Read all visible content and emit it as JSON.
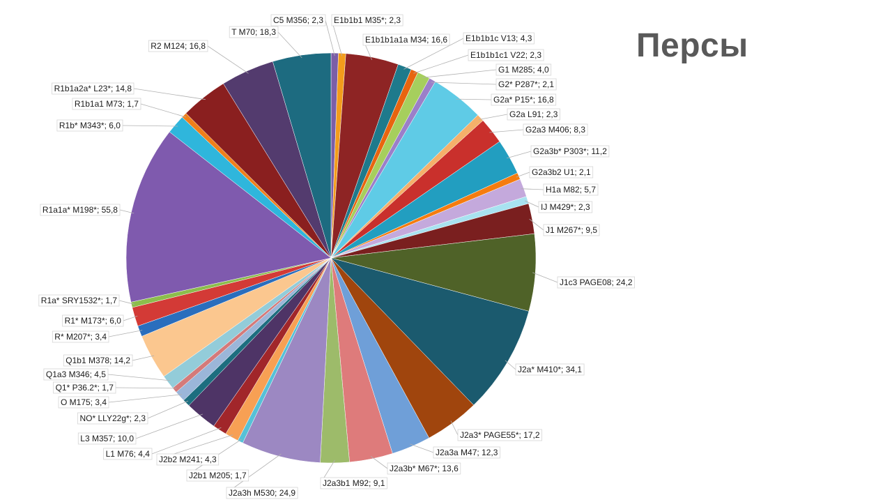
{
  "chart_data": {
    "type": "pie",
    "title": "Персы",
    "slices": [
      {
        "name": "C5 M356",
        "value": 2.3,
        "label": "C5 M356; 2,3",
        "color": "#7b5ea7"
      },
      {
        "name": "E1b1b1 M35*",
        "value": 2.3,
        "label": "E1b1b1 M35*; 2,3",
        "color": "#f39c1b"
      },
      {
        "name": "E1b1b1a1a M34",
        "value": 16.6,
        "label": "E1b1b1a1a M34; 16,6",
        "color": "#8e2424"
      },
      {
        "name": "E1b1b1c V13",
        "value": 4.3,
        "label": "E1b1b1c V13; 4,3",
        "color": "#1e7a8c"
      },
      {
        "name": "E1b1b1c1 V22",
        "value": 2.3,
        "label": "E1b1b1c1 V22; 2,3",
        "color": "#e8650f"
      },
      {
        "name": "G1 M285",
        "value": 4.0,
        "label": "G1 M285; 4,0",
        "color": "#a6cf5d"
      },
      {
        "name": "G2* P287*",
        "value": 2.1,
        "label": "G2* P287*; 2,1",
        "color": "#9b7fc9"
      },
      {
        "name": "G2a* P15*",
        "value": 16.8,
        "label": "G2a* P15*; 16,8",
        "color": "#5fcbe6"
      },
      {
        "name": "G2a L91",
        "value": 2.3,
        "label": "G2a L91; 2,3",
        "color": "#f5b06a"
      },
      {
        "name": "G2a3 M406",
        "value": 8.3,
        "label": "G2a3 M406; 8,3",
        "color": "#c9302c"
      },
      {
        "name": "G2a3b* P303*",
        "value": 11.2,
        "label": "G2a3b* P303*; 11,2",
        "color": "#229ec0"
      },
      {
        "name": "G2a3b2 U1",
        "value": 2.1,
        "label": "G2a3b2 U1; 2,1",
        "color": "#f57c0f"
      },
      {
        "name": "H1a M82",
        "value": 5.7,
        "label": "H1a M82; 5,7",
        "color": "#c4a9dc"
      },
      {
        "name": "IJ M429*",
        "value": 2.3,
        "label": "IJ M429*; 2,3",
        "color": "#a8e2f0"
      },
      {
        "name": "J1 M267*",
        "value": 9.5,
        "label": "J1 M267*; 9,5",
        "color": "#7a1f1f"
      },
      {
        "name": "J1c3 PAGE08",
        "value": 24.2,
        "label": "J1c3 PAGE08; 24,2",
        "color": "#4f6228"
      },
      {
        "name": "J2a* M410*",
        "value": 34.1,
        "label": "J2a* M410*; 34,1",
        "color": "#1b5a6e"
      },
      {
        "name": "J2a3* PAGE55*",
        "value": 17.2,
        "label": "J2a3* PAGE55*; 17,2",
        "color": "#a0450d"
      },
      {
        "name": "J2a3a M47",
        "value": 12.3,
        "label": "J2a3a M47; 12,3",
        "color": "#6f9fd8"
      },
      {
        "name": "J2a3b* M67*",
        "value": 13.6,
        "label": "J2a3b* M67*; 13,6",
        "color": "#de7b7b"
      },
      {
        "name": "J2a3b1 M92",
        "value": 9.1,
        "label": "J2a3b1 M92; 9,1",
        "color": "#9dbb6a"
      },
      {
        "name": "J2a3h M530",
        "value": 24.9,
        "label": "J2a3h M530; 24,9",
        "color": "#9c88c2"
      },
      {
        "name": "J2b1 M205",
        "value": 1.7,
        "label": "J2b1 M205; 1,7",
        "color": "#56c1d7"
      },
      {
        "name": "J2b2 M241",
        "value": 4.3,
        "label": "J2b2 M241; 4,3",
        "color": "#f7a054"
      },
      {
        "name": "L1 M76",
        "value": 4.4,
        "label": "L1 M76; 4,4",
        "color": "#a1262a"
      },
      {
        "name": "L3 M357",
        "value": 10.0,
        "label": "L3 M357; 10,0",
        "color": "#4e3466"
      },
      {
        "name": "NO* LLY22g*",
        "value": 2.3,
        "label": "NO* LLY22g*; 2,3",
        "color": "#1d6e7f"
      },
      {
        "name": "O M175",
        "value": 3.4,
        "label": "O M175; 3,4",
        "color": "#9bb6d9"
      },
      {
        "name": "Q1* P36.2*",
        "value": 1.7,
        "label": "Q1* P36.2*; 1,7",
        "color": "#d47a7a"
      },
      {
        "name": "Q1a3 M346",
        "value": 4.5,
        "label": "Q1a3 M346; 4,5",
        "color": "#93ccd9"
      },
      {
        "name": "Q1b1 M378",
        "value": 14.2,
        "label": "Q1b1 M378; 14,2",
        "color": "#fbc78f"
      },
      {
        "name": "R* M207*",
        "value": 3.4,
        "label": "R* M207*; 3,4",
        "color": "#2a6ebd"
      },
      {
        "name": "R1* M173*",
        "value": 6.0,
        "label": "R1* M173*; 6,0",
        "color": "#d33a36"
      },
      {
        "name": "R1a* SRY1532*",
        "value": 1.7,
        "label": "R1a* SRY1532*; 1,7",
        "color": "#8cbd4c"
      },
      {
        "name": "R1a1a* M198*",
        "value": 55.8,
        "label": "R1a1a* M198*; 55,8",
        "color": "#7f5aae"
      },
      {
        "name": "R1b* M343*",
        "value": 6.0,
        "label": "R1b* M343*; 6,0",
        "color": "#2fb6dc"
      },
      {
        "name": "R1b1a1 M73",
        "value": 1.7,
        "label": "R1b1a1 M73; 1,7",
        "color": "#f07f1a"
      },
      {
        "name": "R1b1a2a* L23*",
        "value": 14.8,
        "label": "R1b1a2a* L23*; 14,8",
        "color": "#8a1f1f"
      },
      {
        "name": "R2 M124",
        "value": 16.8,
        "label": "R2 M124; 16,8",
        "color": "#533b6e"
      },
      {
        "name": "T M70",
        "value": 18.3,
        "label": "T M70; 18,3",
        "color": "#1d6b80"
      }
    ]
  }
}
